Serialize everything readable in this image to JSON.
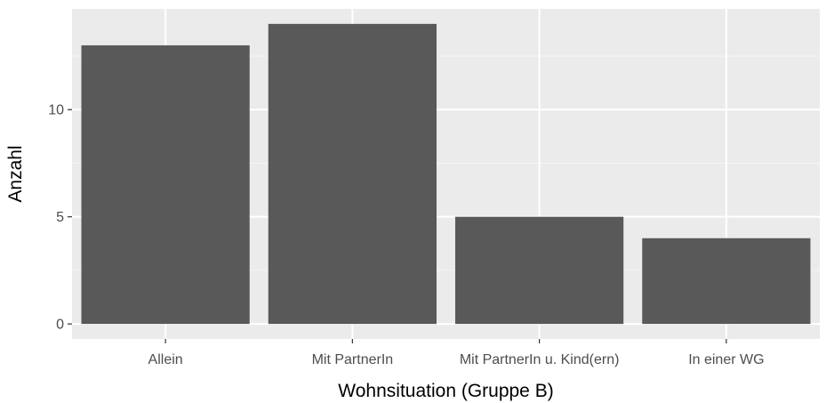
{
  "chart_data": {
    "type": "bar",
    "title": "",
    "xlabel": "Wohnsituation (Gruppe B)",
    "ylabel": "Anzahl",
    "categories": [
      "Allein",
      "Mit PartnerIn",
      "Mit PartnerIn u. Kind(ern)",
      "In einer WG"
    ],
    "values": [
      13,
      14,
      5,
      4
    ],
    "ylim": [
      -0.7,
      14.7
    ],
    "yticks": [
      0,
      5,
      10
    ],
    "ytick_labels": [
      "0",
      "5",
      "10"
    ],
    "grid": true,
    "legend": "none",
    "colors": {
      "bar": "#595959",
      "panel_background": "#ebebeb",
      "grid_major": "#ffffff",
      "grid_minor": "#f5f5f5"
    }
  }
}
